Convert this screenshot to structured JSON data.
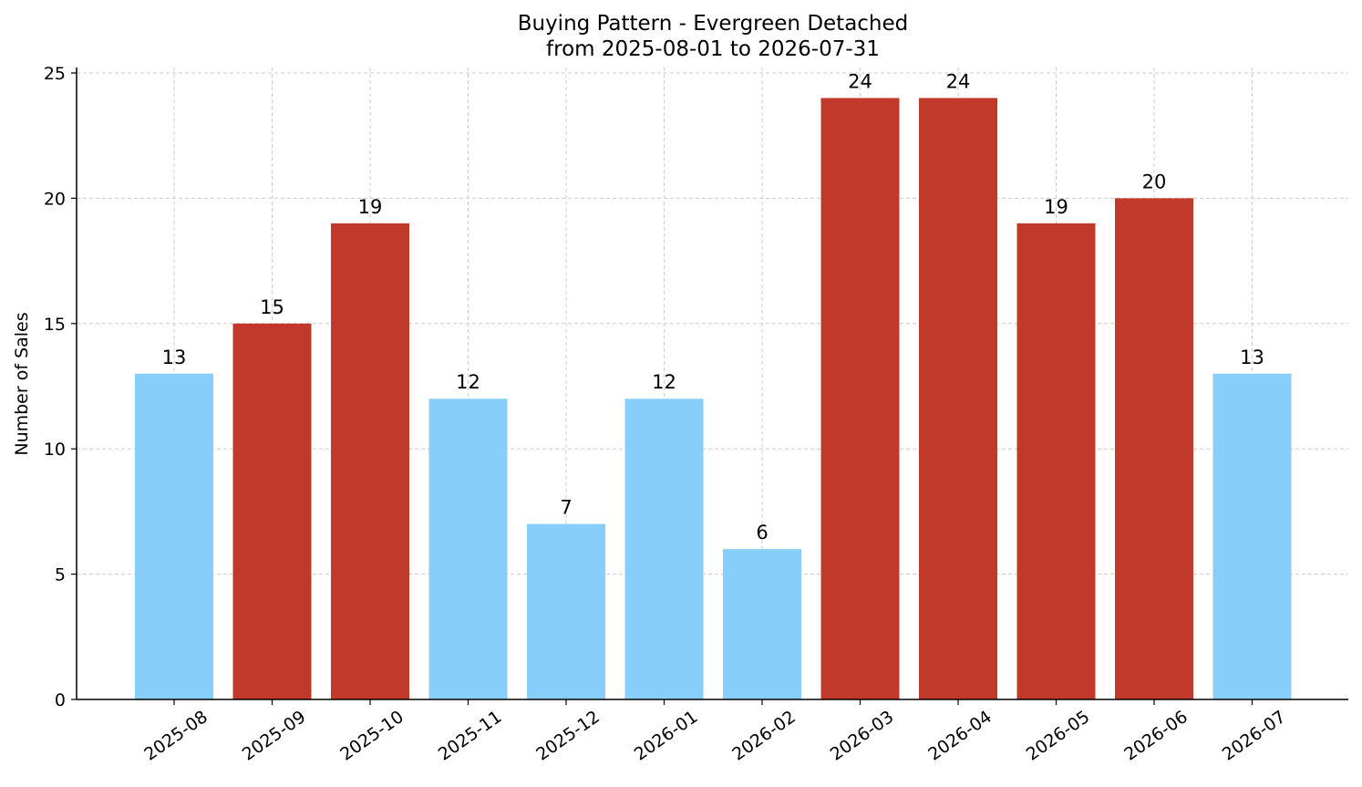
{
  "chart_data": {
    "type": "bar",
    "title": "Buying Pattern - Evergreen Detached",
    "subtitle": "from 2025-08-01 to 2026-07-31",
    "xlabel": "",
    "ylabel": "Number of Sales",
    "categories": [
      "2025-08",
      "2025-09",
      "2025-10",
      "2025-11",
      "2025-12",
      "2026-01",
      "2026-02",
      "2026-03",
      "2026-04",
      "2026-05",
      "2026-06",
      "2026-07"
    ],
    "values": [
      13,
      15,
      19,
      12,
      7,
      12,
      6,
      24,
      24,
      19,
      20,
      13
    ],
    "bar_colors": [
      "#87CEFA",
      "#C0392B",
      "#C0392B",
      "#87CEFA",
      "#87CEFA",
      "#87CEFA",
      "#87CEFA",
      "#C0392B",
      "#C0392B",
      "#C0392B",
      "#C0392B",
      "#87CEFA"
    ],
    "ylim": [
      0,
      25
    ],
    "yticks": [
      0,
      5,
      10,
      15,
      20,
      25
    ],
    "grid": true
  }
}
